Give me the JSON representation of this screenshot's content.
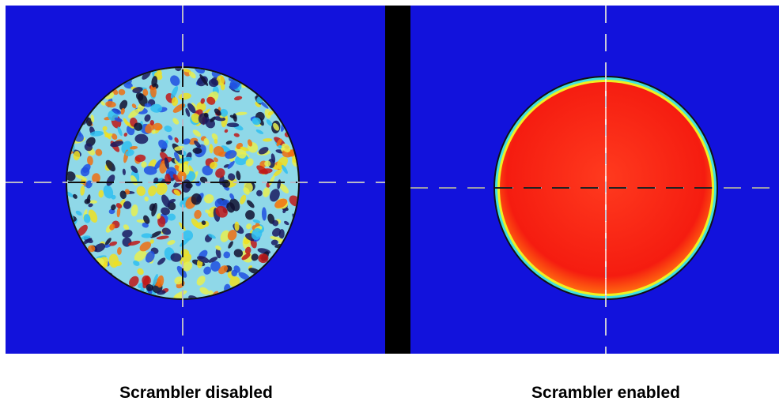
{
  "captions": {
    "left": "Scrambler disabled",
    "right": "Scrambler enabled"
  }
}
